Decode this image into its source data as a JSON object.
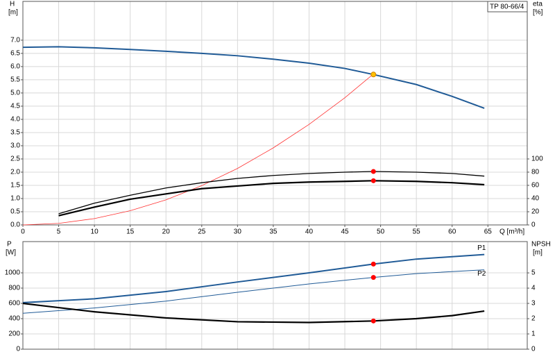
{
  "chart_data": [
    {
      "type": "line",
      "title": "TP 80-66/4",
      "xlabel": "Q [m³/h]",
      "ylabel": "H",
      "yunit": "[m]",
      "y2label": "eta",
      "y2unit": "[%]",
      "xlim": [
        0,
        70.5
      ],
      "xticks": [
        0,
        5,
        10,
        15,
        20,
        25,
        30,
        35,
        40,
        45,
        50,
        55,
        60,
        65
      ],
      "ylim": [
        0,
        8.47
      ],
      "yticks": [
        {
          "value": 0,
          "label": "0.0"
        },
        0.5,
        {
          "value": 1,
          "label": "1.0"
        },
        1.5,
        {
          "value": 2,
          "label": "2.0"
        },
        2.5,
        {
          "value": 3,
          "label": "3.0"
        },
        3.5,
        {
          "value": 4,
          "label": "4.0"
        },
        4.5,
        {
          "value": 5,
          "label": "5.0"
        },
        5.5,
        {
          "value": 6,
          "label": "6.0"
        },
        6.5,
        {
          "value": 7,
          "label": "7.0"
        }
      ],
      "y2lim": [
        0,
        338.8
      ],
      "y2ticks": [
        0,
        20,
        40,
        60,
        80,
        100
      ],
      "grid": true,
      "series": [
        {
          "color": "#1f5a96",
          "x": [
            0,
            5,
            10,
            15,
            20,
            25,
            30,
            35,
            40,
            45,
            49,
            55,
            60,
            64.5
          ],
          "values": [
            6.73,
            6.75,
            6.71,
            6.65,
            6.58,
            6.5,
            6.41,
            6.28,
            6.13,
            5.93,
            5.7,
            5.32,
            4.87,
            4.42
          ]
        },
        {
          "color": "#ff3030",
          "x": [
            0,
            5,
            10,
            15,
            20,
            25,
            30,
            35,
            40,
            45,
            49
          ],
          "values": [
            0,
            0.06,
            0.24,
            0.54,
            0.95,
            1.49,
            2.14,
            2.92,
            3.81,
            4.82,
            5.72
          ]
        },
        {
          "color": "#000000",
          "axis": "y2",
          "x": [
            5,
            10,
            15,
            20,
            25,
            30,
            35,
            40,
            45,
            49,
            55,
            60,
            64.5
          ],
          "values": [
            17,
            33,
            45,
            56,
            64,
            70.5,
            75,
            78,
            80,
            81,
            80,
            78,
            74
          ]
        },
        {
          "color": "#000000",
          "axis": "y2",
          "x": [
            5,
            10,
            15,
            20,
            25,
            30,
            35,
            40,
            45,
            49,
            55,
            60,
            64.5
          ],
          "values": [
            14,
            27,
            39,
            47,
            55,
            59,
            63,
            65,
            66,
            67,
            66,
            64,
            61
          ]
        }
      ],
      "points": [
        {
          "x": 49,
          "y": 5.7,
          "color": "#ffc000"
        },
        {
          "x": 49,
          "y": 81,
          "axis": "y2",
          "color": "#ff0000"
        },
        {
          "x": 49,
          "y": 67,
          "axis": "y2",
          "color": "#ff0000"
        }
      ]
    },
    {
      "type": "line",
      "ylabel": "P",
      "yunit": "[W]",
      "y2label": "NPSH",
      "y2unit": "[m]",
      "xlim": [
        0,
        70.5
      ],
      "ylim": [
        0,
        1409
      ],
      "yticks": [
        0,
        200,
        400,
        600,
        800,
        1000
      ],
      "y2lim": [
        0,
        7.05
      ],
      "y2ticks": [
        0,
        1,
        2,
        3,
        4,
        5
      ],
      "grid": true,
      "series": [
        {
          "name": "P1",
          "color": "#1f5a96",
          "x": [
            0,
            10,
            20,
            30,
            40,
            49,
            55,
            64.5
          ],
          "values": [
            610,
            660,
            755,
            880,
            1000,
            1115,
            1180,
            1240
          ]
        },
        {
          "name": "P2",
          "color": "#1f5a96",
          "x": [
            0,
            10,
            20,
            30,
            40,
            49,
            55,
            64.5
          ],
          "values": [
            470,
            540,
            630,
            745,
            855,
            940,
            990,
            1040
          ]
        },
        {
          "color": "#000000",
          "axis": "y2",
          "x": [
            0,
            10,
            20,
            30,
            40,
            49,
            55,
            60,
            64.5
          ],
          "values": [
            3.0,
            2.45,
            2.05,
            1.8,
            1.75,
            1.85,
            2.0,
            2.2,
            2.5
          ]
        }
      ],
      "points": [
        {
          "x": 49,
          "y": 1115,
          "color": "#ff0000"
        },
        {
          "x": 49,
          "y": 940,
          "color": "#ff0000"
        },
        {
          "x": 49,
          "y": 1.85,
          "axis": "y2",
          "color": "#ff0000"
        }
      ]
    }
  ]
}
